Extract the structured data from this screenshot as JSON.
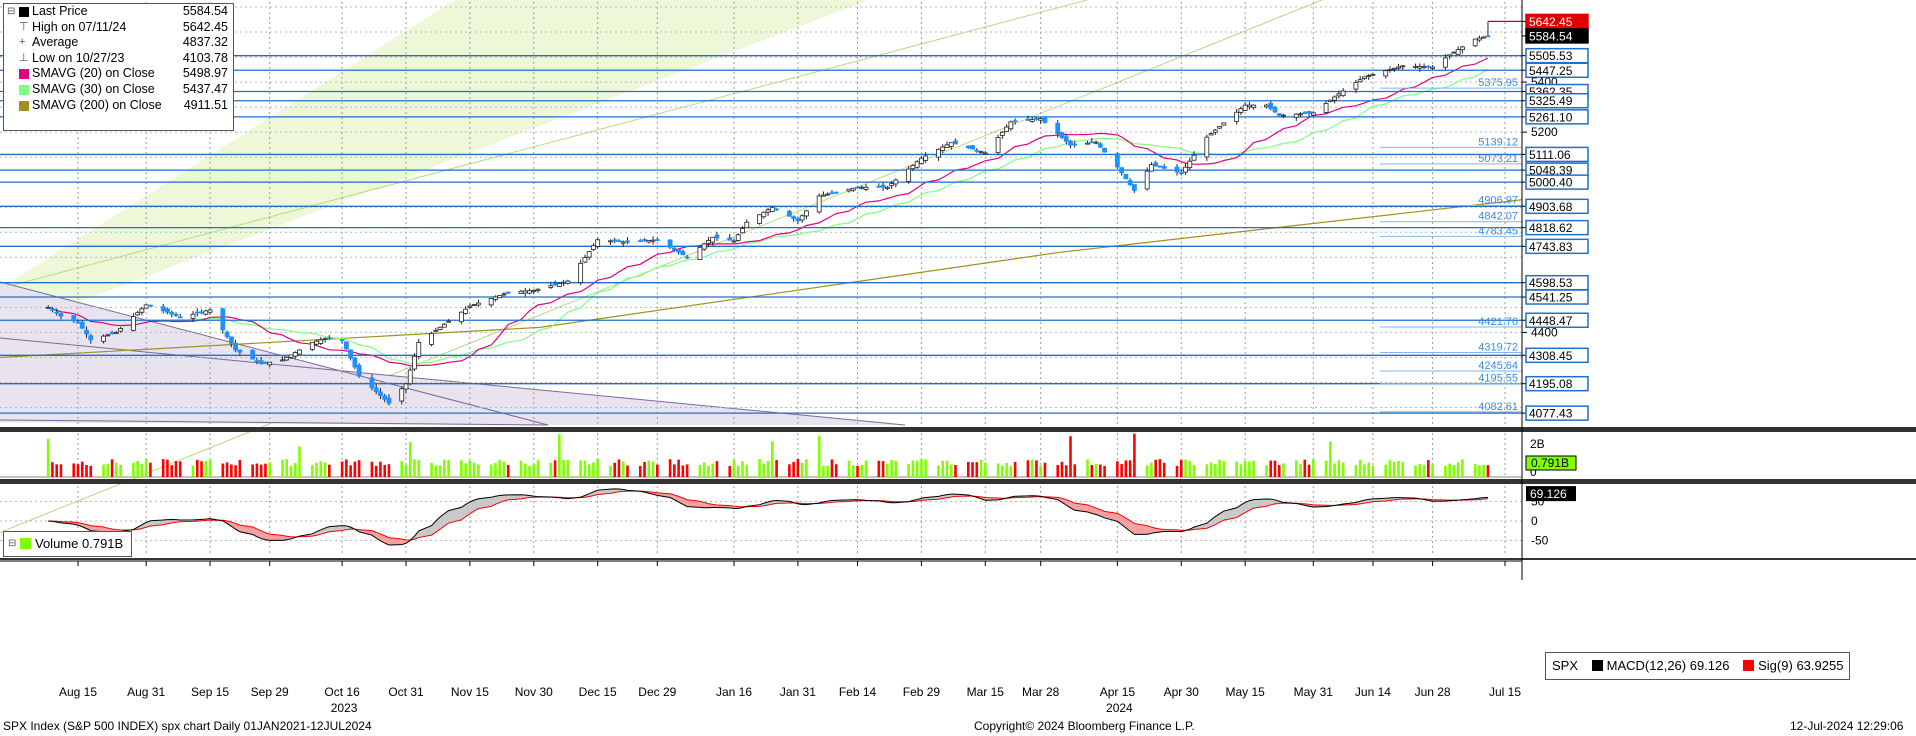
{
  "colors": {
    "candle_up": "#1f1f1f",
    "candle_down": "#1e90ff",
    "sma20": "#e6007e",
    "sma30": "#7fff7f",
    "sma200": "#a09020",
    "hline": "#1e6fd0",
    "vol_up": "#7fff00",
    "vol_down": "#ff0000",
    "macd": "#000000",
    "signal": "#ff0000"
  },
  "legend": {
    "items": [
      {
        "label": "Last Price",
        "value": "5584.54",
        "color": "#000000",
        "marker": "box"
      },
      {
        "label": "High on 07/11/24",
        "value": "5642.45",
        "color": "#555555",
        "marker": "high"
      },
      {
        "label": "Average",
        "value": "4837.32",
        "color": "#555555",
        "marker": "avg"
      },
      {
        "label": "Low on 10/27/23",
        "value": "4103.78",
        "color": "#555555",
        "marker": "low"
      },
      {
        "label": "SMAVG (20)  on Close",
        "value": "5498.97",
        "color": "#e6007e",
        "marker": "box"
      },
      {
        "label": "SMAVG (30)  on Close",
        "value": "5437.47",
        "color": "#7fff7f",
        "marker": "box"
      },
      {
        "label": "SMAVG (200)  on Close",
        "value": "4911.51",
        "color": "#a09020",
        "marker": "box"
      }
    ]
  },
  "volume_legend": {
    "label": "Volume",
    "value": "0.791B"
  },
  "macd_legend": {
    "ticker": "SPX",
    "macd_label": "MACD(12,26)",
    "macd_value": "69.126",
    "sig_label": "Sig(9)",
    "sig_value": "63.9255"
  },
  "footer": {
    "left": "SPX Index (S&P 500 INDEX) spx chart  Daily 01JAN2021-12JUL2024",
    "center": "Copyright© 2024 Bloomberg Finance L.P.",
    "right": "12-Jul-2024 12:29:06"
  },
  "chart_data": {
    "type": "candlestick",
    "x_tick_labels": [
      "Aug 15",
      "Aug 31",
      "Sep 15",
      "Sep 29",
      "Oct 16",
      "Oct 31",
      "Nov 15",
      "Nov 30",
      "Dec 15",
      "Dec 29",
      "Jan 16",
      "Jan 31",
      "Feb 14",
      "Feb 29",
      "Mar 15",
      "Mar 28",
      "Apr 15",
      "Apr 30",
      "May 15",
      "May 31",
      "Jun 14",
      "Jun 28",
      "Jul 15"
    ],
    "x_year_labels": [
      {
        "label": "2023",
        "at": "Oct 16"
      },
      {
        "label": "2024",
        "at": "Apr 15"
      }
    ],
    "price_axis": {
      "ylim": [
        4030,
        5720
      ],
      "ticks": [
        5400,
        5200,
        4400
      ]
    },
    "price_path": [
      [
        "Aug 8",
        4500
      ],
      [
        "Aug 11",
        4465
      ],
      [
        "Aug 15",
        4440
      ],
      [
        "Aug 18",
        4370
      ],
      [
        "Aug 24",
        4400
      ],
      [
        "Aug 31",
        4510
      ],
      [
        "Sep 5",
        4480
      ],
      [
        "Sep 8",
        4460
      ],
      [
        "Sep 15",
        4490
      ],
      [
        "Sep 21",
        4330
      ],
      [
        "Sep 27",
        4275
      ],
      [
        "Oct 2",
        4290
      ],
      [
        "Oct 9",
        4360
      ],
      [
        "Oct 12",
        4375
      ],
      [
        "Oct 16",
        4370
      ],
      [
        "Oct 20",
        4225
      ],
      [
        "Oct 27",
        4117
      ],
      [
        "Oct 31",
        4194
      ],
      [
        "Nov 3",
        4360
      ],
      [
        "Nov 15",
        4505
      ],
      [
        "Nov 24",
        4560
      ],
      [
        "Nov 30",
        4568
      ],
      [
        "Dec 8",
        4605
      ],
      [
        "Dec 15",
        4770
      ],
      [
        "Dec 22",
        4760
      ],
      [
        "Dec 29",
        4770
      ],
      [
        "Jan 5",
        4700
      ],
      [
        "Jan 11",
        4780
      ],
      [
        "Jan 16",
        4765
      ],
      [
        "Jan 19",
        4840
      ],
      [
        "Jan 25",
        4900
      ],
      [
        "Jan 31",
        4846
      ],
      [
        "Feb 5",
        4945
      ],
      [
        "Feb 14",
        4980
      ],
      [
        "Feb 21",
        4980
      ],
      [
        "Feb 29",
        5096
      ],
      [
        "Mar 7",
        5158
      ],
      [
        "Mar 15",
        5117
      ],
      [
        "Mar 21",
        5241
      ],
      [
        "Mar 28",
        5254
      ],
      [
        "Apr 4",
        5148
      ],
      [
        "Apr 10",
        5160
      ],
      [
        "Apr 15",
        5061
      ],
      [
        "Apr 19",
        4967
      ],
      [
        "Apr 23",
        5070
      ],
      [
        "Apr 30",
        5036
      ],
      [
        "May 6",
        5180
      ],
      [
        "May 15",
        5308
      ],
      [
        "May 20",
        5308
      ],
      [
        "May 23",
        5267
      ],
      [
        "May 31",
        5277
      ],
      [
        "Jun 6",
        5353
      ],
      [
        "Jun 12",
        5421
      ],
      [
        "Jun 14",
        5431
      ],
      [
        "Jun 21",
        5465
      ],
      [
        "Jun 28",
        5460
      ],
      [
        "Jul 2",
        5509
      ],
      [
        "Jul 8",
        5572
      ],
      [
        "Jul 11",
        5584
      ]
    ],
    "high": {
      "date": "07/11/24",
      "value": 5642.45
    },
    "low": {
      "date": "10/27/23",
      "value": 4103.78
    },
    "average": 4837.32,
    "last_price": 5584.54,
    "sma": [
      {
        "name": "SMAVG (20)",
        "value": 5498.97
      },
      {
        "name": "SMAVG (30)",
        "value": 5437.47
      },
      {
        "name": "SMAVG (200)",
        "value": 4911.51
      }
    ],
    "right_axis_labels": [
      {
        "value": "5642.45",
        "style": "red"
      },
      {
        "value": "5584.54",
        "style": "black"
      },
      {
        "value": "5505.53",
        "style": "blue"
      },
      {
        "value": "5447.25",
        "style": "blue"
      },
      {
        "value": "5400",
        "style": "tick"
      },
      {
        "value": "5362.35",
        "style": "blue"
      },
      {
        "value": "5325.49",
        "style": "blue"
      },
      {
        "value": "5261.10",
        "style": "blue"
      },
      {
        "value": "5200",
        "style": "tick"
      },
      {
        "value": "5111.06",
        "style": "blue"
      },
      {
        "value": "5048.39",
        "style": "blue"
      },
      {
        "value": "5000.40",
        "style": "blue"
      },
      {
        "value": "4903.68",
        "style": "blue"
      },
      {
        "value": "4818.62",
        "style": "blue"
      },
      {
        "value": "4743.83",
        "style": "blue"
      },
      {
        "value": "4598.53",
        "style": "blue"
      },
      {
        "value": "4541.25",
        "style": "blue"
      },
      {
        "value": "4448.47",
        "style": "blue"
      },
      {
        "value": "4400",
        "style": "tick"
      },
      {
        "value": "4308.45",
        "style": "blue"
      },
      {
        "value": "4195.08",
        "style": "blue"
      },
      {
        "value": "4077.43",
        "style": "blue"
      }
    ],
    "inline_levels": [
      "5375.95",
      "5139.12",
      "5073.21",
      "4906.97",
      "4842.07",
      "4783.45",
      "4421.76",
      "4319.72",
      "4245.64",
      "4195.55",
      "4082.61"
    ],
    "volume": {
      "unit": "B",
      "ticks": [
        "2B",
        "0"
      ],
      "last": "0.791B"
    },
    "macd": {
      "ticks": [
        "50",
        "0",
        "-50"
      ],
      "macd_last": 69.126,
      "signal_last": 63.9255
    }
  }
}
